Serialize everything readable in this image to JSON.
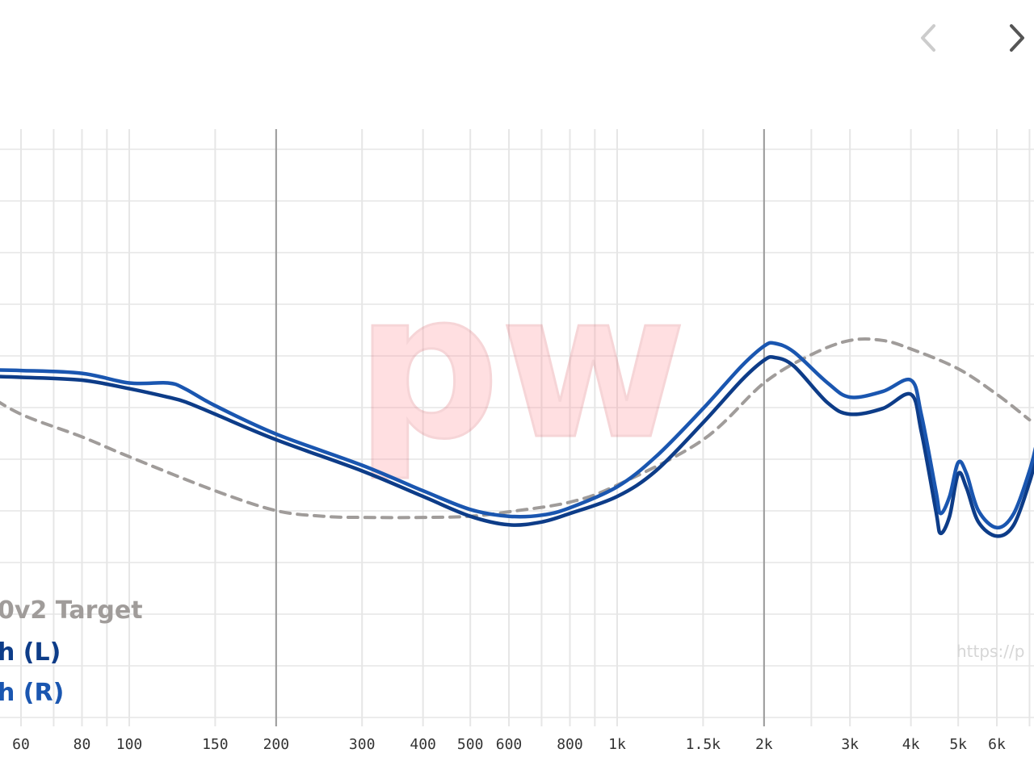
{
  "nav": {
    "prev_icon": "chevron-left-icon",
    "next_icon": "chevron-right-icon",
    "prev_color": "#cccccc",
    "next_color": "#555555"
  },
  "watermark": {
    "text": "pw",
    "url": "https://p"
  },
  "legend": [
    {
      "label": "0v2 Target",
      "color": "#a09c9a"
    },
    {
      "label": "h (L)",
      "color": "#0d3c88"
    },
    {
      "label": "h (R)",
      "color": "#1a56b0"
    }
  ],
  "chart_data": {
    "type": "line",
    "title": "",
    "xlabel": "",
    "ylabel": "",
    "x_scale": "log",
    "xlim": [
      50,
      7200
    ],
    "ylim": [
      0,
      10
    ],
    "grid": true,
    "x_ticks": [
      {
        "v": 60,
        "label": "60"
      },
      {
        "v": 80,
        "label": "80"
      },
      {
        "v": 100,
        "label": "100"
      },
      {
        "v": 150,
        "label": "150"
      },
      {
        "v": 200,
        "label": "200"
      },
      {
        "v": 300,
        "label": "300"
      },
      {
        "v": 400,
        "label": "400"
      },
      {
        "v": 500,
        "label": "500"
      },
      {
        "v": 600,
        "label": "600"
      },
      {
        "v": 800,
        "label": "800"
      },
      {
        "v": 1000,
        "label": "1k"
      },
      {
        "v": 1500,
        "label": "1.5k"
      },
      {
        "v": 2000,
        "label": "2k"
      },
      {
        "v": 3000,
        "label": "3k"
      },
      {
        "v": 4000,
        "label": "4k"
      },
      {
        "v": 5000,
        "label": "5k"
      },
      {
        "v": 6000,
        "label": "6k"
      }
    ],
    "series": [
      {
        "name": "0v2 Target",
        "color": "#a09c9a",
        "dashed": true,
        "x": [
          50,
          60,
          80,
          100,
          150,
          200,
          250,
          300,
          400,
          500,
          600,
          800,
          1000,
          1500,
          2000,
          2500,
          3000,
          3500,
          4000,
          5000,
          6000,
          7000
        ],
        "y": [
          6.4,
          6.0,
          5.6,
          5.25,
          4.65,
          4.3,
          4.2,
          4.18,
          4.18,
          4.2,
          4.28,
          4.45,
          4.75,
          5.55,
          6.55,
          7.05,
          7.3,
          7.3,
          7.15,
          6.8,
          6.35,
          5.9
        ]
      },
      {
        "name": "h (L)",
        "color": "#0d3c88",
        "dashed": false,
        "x": [
          50,
          60,
          80,
          100,
          120,
          130,
          150,
          200,
          300,
          400,
          500,
          600,
          700,
          800,
          1000,
          1200,
          1500,
          1800,
          2000,
          2100,
          2300,
          2700,
          3000,
          3500,
          4000,
          4200,
          4500,
          4600,
          4800,
          5000,
          5200,
          5500,
          6000,
          6500,
          7000,
          7200
        ],
        "y": [
          6.67,
          6.65,
          6.6,
          6.45,
          6.3,
          6.22,
          6.0,
          5.55,
          5.0,
          4.55,
          4.2,
          4.05,
          4.1,
          4.25,
          4.55,
          5.0,
          5.85,
          6.6,
          6.95,
          7.0,
          6.85,
          6.2,
          6.0,
          6.1,
          6.35,
          5.7,
          4.3,
          3.9,
          4.2,
          4.95,
          4.7,
          4.1,
          3.85,
          4.05,
          4.8,
          5.2
        ]
      },
      {
        "name": "h (R)",
        "color": "#1a56b0",
        "dashed": false,
        "x": [
          50,
          60,
          80,
          100,
          120,
          130,
          150,
          200,
          300,
          400,
          500,
          600,
          700,
          800,
          1000,
          1200,
          1500,
          1800,
          2000,
          2100,
          2300,
          2700,
          3000,
          3500,
          4000,
          4200,
          4500,
          4600,
          4800,
          5000,
          5200,
          5500,
          6000,
          6500,
          7000,
          7200
        ],
        "y": [
          6.78,
          6.77,
          6.72,
          6.55,
          6.55,
          6.45,
          6.15,
          5.65,
          5.1,
          4.65,
          4.32,
          4.2,
          4.22,
          4.35,
          4.72,
          5.25,
          6.1,
          6.85,
          7.2,
          7.25,
          7.1,
          6.55,
          6.3,
          6.4,
          6.6,
          6.0,
          4.65,
          4.25,
          4.55,
          5.15,
          4.95,
          4.3,
          4.0,
          4.25,
          5.0,
          5.4
        ]
      }
    ]
  }
}
